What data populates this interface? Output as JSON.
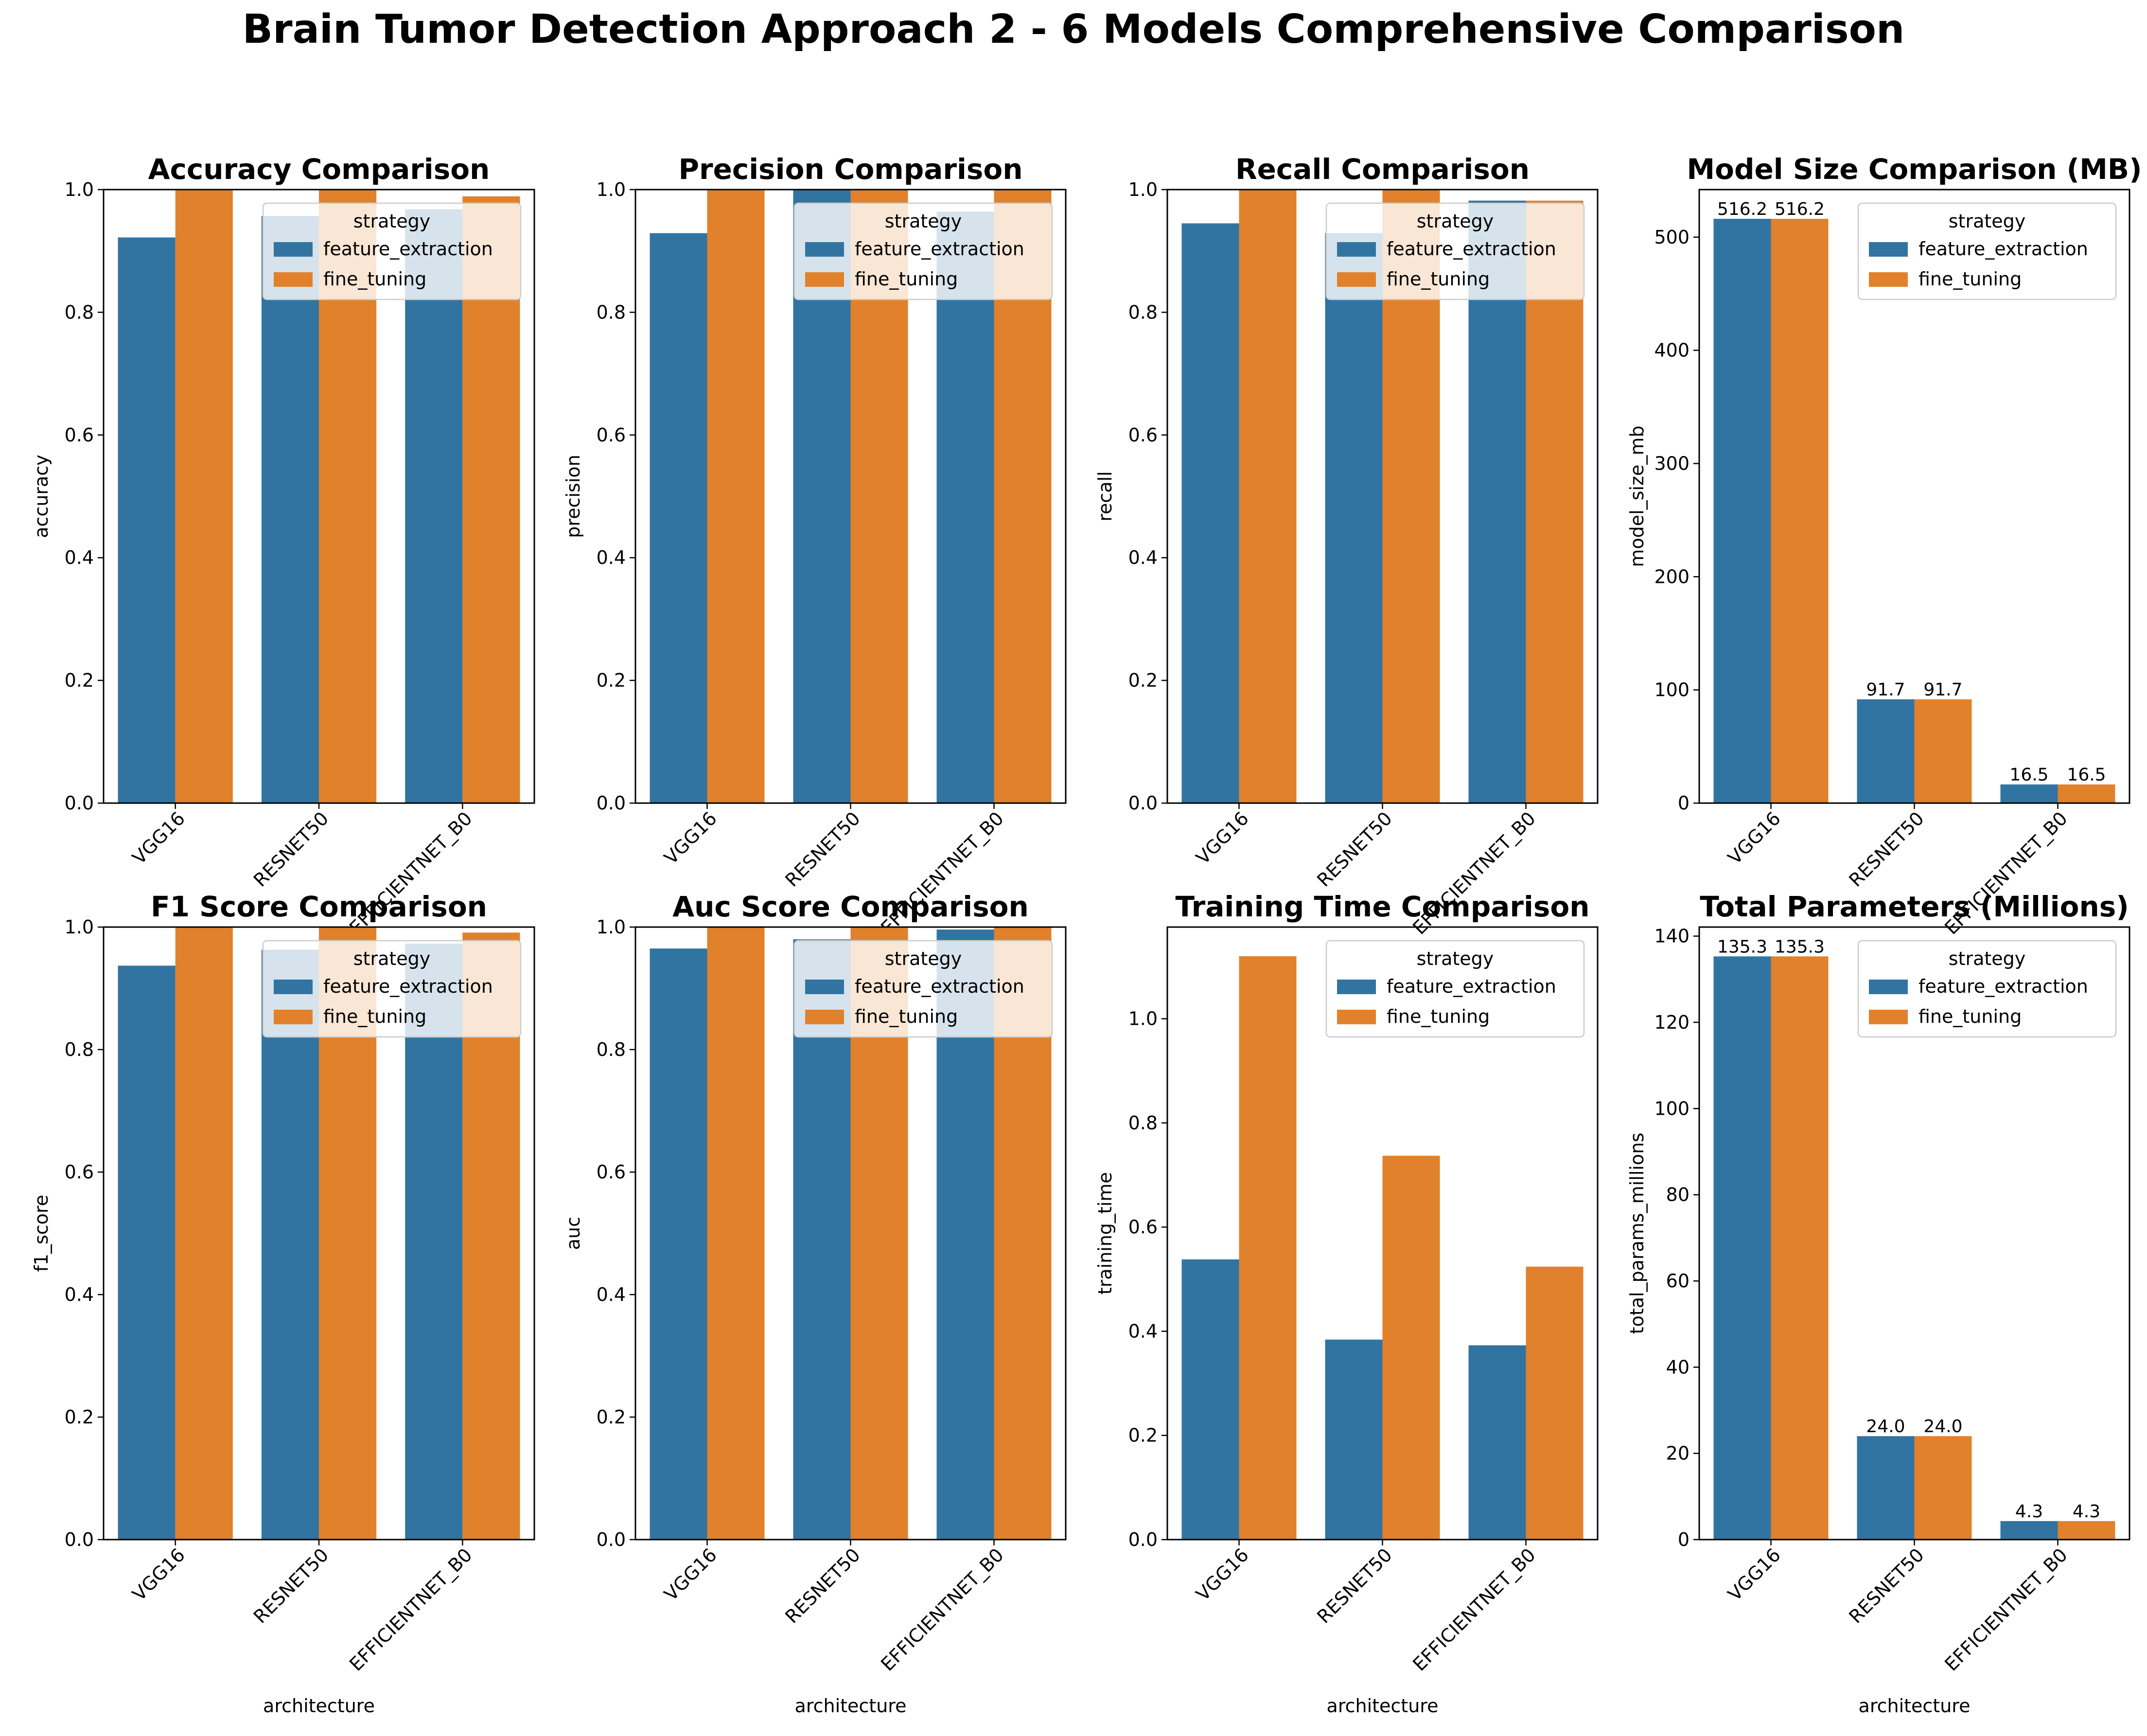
{
  "figure": {
    "title": "Brain Tumor Detection Approach 2 - 6 Models Comprehensive Comparison",
    "colors": {
      "feature_extraction": "#3274a1",
      "fine_tuning": "#e1812c"
    }
  },
  "chart_data": [
    {
      "type": "bar",
      "title": "Accuracy Comparison",
      "xlabel": "",
      "ylabel": "accuracy",
      "categories": [
        "VGG16",
        "RESNET50",
        "EFFICIENTNET_B0"
      ],
      "series": [
        {
          "name": "feature_extraction",
          "values": [
            0.922,
            0.957,
            0.968
          ]
        },
        {
          "name": "fine_tuning",
          "values": [
            1.0,
            1.0,
            0.989
          ]
        }
      ],
      "ylim": [
        0,
        1.0
      ],
      "yticks": [
        0.0,
        0.2,
        0.4,
        0.6,
        0.8,
        1.0
      ],
      "ytick_labels": [
        "0.0",
        "0.2",
        "0.4",
        "0.6",
        "0.8",
        "1.0"
      ],
      "legend": {
        "title": "strategy",
        "placement": "top-right"
      },
      "bar_labels": []
    },
    {
      "type": "bar",
      "title": "Precision Comparison",
      "xlabel": "",
      "ylabel": "precision",
      "categories": [
        "VGG16",
        "RESNET50",
        "EFFICIENTNET_B0"
      ],
      "series": [
        {
          "name": "feature_extraction",
          "values": [
            0.929,
            1.0,
            0.964
          ]
        },
        {
          "name": "fine_tuning",
          "values": [
            1.0,
            1.0,
            1.0
          ]
        }
      ],
      "ylim": [
        0,
        1.0
      ],
      "yticks": [
        0.0,
        0.2,
        0.4,
        0.6,
        0.8,
        1.0
      ],
      "ytick_labels": [
        "0.0",
        "0.2",
        "0.4",
        "0.6",
        "0.8",
        "1.0"
      ],
      "legend": {
        "title": "strategy",
        "placement": "top-right"
      },
      "bar_labels": []
    },
    {
      "type": "bar",
      "title": "Recall Comparison",
      "xlabel": "",
      "ylabel": "recall",
      "categories": [
        "VGG16",
        "RESNET50",
        "EFFICIENTNET_B0"
      ],
      "series": [
        {
          "name": "feature_extraction",
          "values": [
            0.945,
            0.929,
            0.982
          ]
        },
        {
          "name": "fine_tuning",
          "values": [
            1.0,
            1.0,
            0.982
          ]
        }
      ],
      "ylim": [
        0,
        1.0
      ],
      "yticks": [
        0.0,
        0.2,
        0.4,
        0.6,
        0.8,
        1.0
      ],
      "ytick_labels": [
        "0.0",
        "0.2",
        "0.4",
        "0.6",
        "0.8",
        "1.0"
      ],
      "legend": {
        "title": "strategy",
        "placement": "top-right"
      },
      "bar_labels": []
    },
    {
      "type": "bar",
      "title": "Model Size Comparison (MB)",
      "xlabel": "",
      "ylabel": "model_size_mb",
      "categories": [
        "VGG16",
        "RESNET50",
        "EFFICIENTNET_B0"
      ],
      "series": [
        {
          "name": "feature_extraction",
          "values": [
            516.2,
            91.7,
            16.5
          ]
        },
        {
          "name": "fine_tuning",
          "values": [
            516.2,
            91.7,
            16.5
          ]
        }
      ],
      "ylim": [
        0,
        542.0
      ],
      "yticks": [
        0,
        100,
        200,
        300,
        400,
        500
      ],
      "ytick_labels": [
        "0",
        "100",
        "200",
        "300",
        "400",
        "500"
      ],
      "legend": {
        "title": "strategy",
        "placement": "top-right"
      },
      "bar_labels": [
        [
          "516.2",
          "91.7",
          "16.5"
        ],
        [
          "516.2",
          "91.7",
          "16.5"
        ]
      ]
    },
    {
      "type": "bar",
      "title": "F1 Score Comparison",
      "xlabel": "architecture",
      "ylabel": "f1_score",
      "categories": [
        "VGG16",
        "RESNET50",
        "EFFICIENTNET_B0"
      ],
      "series": [
        {
          "name": "feature_extraction",
          "values": [
            0.937,
            0.963,
            0.973
          ]
        },
        {
          "name": "fine_tuning",
          "values": [
            1.0,
            1.0,
            0.991
          ]
        }
      ],
      "ylim": [
        0,
        1.0
      ],
      "yticks": [
        0.0,
        0.2,
        0.4,
        0.6,
        0.8,
        1.0
      ],
      "ytick_labels": [
        "0.0",
        "0.2",
        "0.4",
        "0.6",
        "0.8",
        "1.0"
      ],
      "legend": {
        "title": "strategy",
        "placement": "top-right"
      },
      "bar_labels": []
    },
    {
      "type": "bar",
      "title": "Auc Score Comparison",
      "xlabel": "architecture",
      "ylabel": "auc",
      "categories": [
        "VGG16",
        "RESNET50",
        "EFFICIENTNET_B0"
      ],
      "series": [
        {
          "name": "feature_extraction",
          "values": [
            0.965,
            0.98,
            0.996
          ]
        },
        {
          "name": "fine_tuning",
          "values": [
            1.0,
            1.0,
            1.0
          ]
        }
      ],
      "ylim": [
        0,
        1.0
      ],
      "yticks": [
        0.0,
        0.2,
        0.4,
        0.6,
        0.8,
        1.0
      ],
      "ytick_labels": [
        "0.0",
        "0.2",
        "0.4",
        "0.6",
        "0.8",
        "1.0"
      ],
      "legend": {
        "title": "strategy",
        "placement": "top-right"
      },
      "bar_labels": []
    },
    {
      "type": "bar",
      "title": "Training Time Comparison",
      "xlabel": "architecture",
      "ylabel": "training_time",
      "categories": [
        "VGG16",
        "RESNET50",
        "EFFICIENTNET_B0"
      ],
      "series": [
        {
          "name": "feature_extraction",
          "values": [
            0.538,
            0.384,
            0.373
          ]
        },
        {
          "name": "fine_tuning",
          "values": [
            1.12,
            0.737,
            0.524
          ]
        }
      ],
      "ylim": [
        0,
        1.176
      ],
      "yticks": [
        0.0,
        0.2,
        0.4,
        0.6,
        0.8,
        1.0
      ],
      "ytick_labels": [
        "0.0",
        "0.2",
        "0.4",
        "0.6",
        "0.8",
        "1.0"
      ],
      "legend": {
        "title": "strategy",
        "placement": "top-right"
      },
      "bar_labels": []
    },
    {
      "type": "bar",
      "title": "Total Parameters (Millions)",
      "xlabel": "architecture",
      "ylabel": "total_params_millions",
      "categories": [
        "VGG16",
        "RESNET50",
        "EFFICIENTNET_B0"
      ],
      "series": [
        {
          "name": "feature_extraction",
          "values": [
            135.3,
            24.0,
            4.3
          ]
        },
        {
          "name": "fine_tuning",
          "values": [
            135.3,
            24.0,
            4.3
          ]
        }
      ],
      "ylim": [
        0,
        142.1
      ],
      "yticks": [
        0,
        20,
        40,
        60,
        80,
        100,
        120,
        140
      ],
      "ytick_labels": [
        "0",
        "20",
        "40",
        "60",
        "80",
        "100",
        "120",
        "140"
      ],
      "legend": {
        "title": "strategy",
        "placement": "top-right"
      },
      "bar_labels": [
        [
          "135.3",
          "24.0",
          "4.3"
        ],
        [
          "135.3",
          "24.0",
          "4.3"
        ]
      ]
    }
  ]
}
